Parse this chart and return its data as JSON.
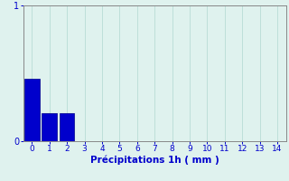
{
  "categories": [
    0,
    1,
    2,
    3,
    4,
    5,
    6,
    7,
    8,
    9,
    10,
    11,
    12,
    13,
    14
  ],
  "bar_values": [
    0.46,
    0.21,
    0.21,
    0.0,
    0.0,
    0.0,
    0.0,
    0.0,
    0.0,
    0.0,
    0.0,
    0.0,
    0.0,
    0.0,
    0.0
  ],
  "bar_color": "#0000cc",
  "bar_edge_color": "#00008b",
  "background_color": "#dff2ee",
  "xlabel": "Précipitations 1h ( mm )",
  "xlabel_color": "#0000cc",
  "ylim": [
    0,
    1
  ],
  "xlim": [
    -0.5,
    14.5
  ],
  "yticks": [
    0,
    1
  ],
  "xticks": [
    0,
    1,
    2,
    3,
    4,
    5,
    6,
    7,
    8,
    9,
    10,
    11,
    12,
    13,
    14
  ],
  "grid_color": "#b0d8d0",
  "tick_color": "#0000cc",
  "axis_color": "#888888",
  "bar_width": 0.85,
  "figsize": [
    3.2,
    2.0
  ],
  "dpi": 100
}
